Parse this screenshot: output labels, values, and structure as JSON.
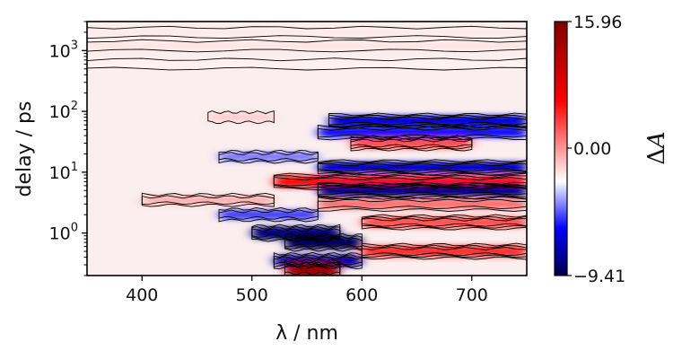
{
  "chart_data": {
    "type": "heatmap",
    "title": "",
    "xlabel": "λ / nm",
    "ylabel": "delay / ps",
    "xlim": [
      350,
      750
    ],
    "ylim": [
      0.2,
      3000
    ],
    "yscale": "log",
    "xticks": [
      400,
      500,
      600,
      700
    ],
    "yticks": [
      1,
      10,
      100,
      1000
    ],
    "ytick_labels": [
      {
        "base": "10",
        "exp": "0"
      },
      {
        "base": "10",
        "exp": "1"
      },
      {
        "base": "10",
        "exp": "2"
      },
      {
        "base": "10",
        "exp": "3"
      }
    ],
    "colormap": "seismic",
    "colors": {
      "negative": "#00004d",
      "mid_neg": "#0000ff",
      "zero": "#ffffff",
      "mid_pos": "#ff0000",
      "positive": "#800000"
    },
    "colorbar": {
      "label_symbol": "Δ",
      "label_var": "A",
      "min": -9.41,
      "max": 15.96,
      "ticks": [
        "15.96",
        "0.00",
        "−9.41"
      ]
    },
    "grid": false,
    "legend": "none",
    "bands": [
      {
        "y": 2000,
        "x": [
          350,
          750
        ],
        "value": 0.6
      },
      {
        "y": 1200,
        "x": [
          350,
          750
        ],
        "value": 0.8
      },
      {
        "y": 600,
        "x": [
          350,
          750
        ],
        "value": 0.4
      },
      {
        "y": 80,
        "x": [
          460,
          520
        ],
        "value": 1.5
      },
      {
        "y": 70,
        "x": [
          570,
          750
        ],
        "value": -5.5
      },
      {
        "y": 45,
        "x": [
          560,
          750
        ],
        "value": -4.5
      },
      {
        "y": 30,
        "x": [
          590,
          700
        ],
        "value": 5.5
      },
      {
        "y": 18,
        "x": [
          470,
          560
        ],
        "value": -2.5
      },
      {
        "y": 12,
        "x": [
          560,
          750
        ],
        "value": -6.0
      },
      {
        "y": 7,
        "x": [
          520,
          750
        ],
        "value": 7.5
      },
      {
        "y": 5,
        "x": [
          560,
          750
        ],
        "value": -7.5
      },
      {
        "y": 3.5,
        "x": [
          400,
          520
        ],
        "value": 2.5
      },
      {
        "y": 3,
        "x": [
          560,
          750
        ],
        "value": 4.5
      },
      {
        "y": 2,
        "x": [
          470,
          560
        ],
        "value": -3.5
      },
      {
        "y": 1.5,
        "x": [
          600,
          750
        ],
        "value": 5.5
      },
      {
        "y": 1.0,
        "x": [
          500,
          580
        ],
        "value": -8.0
      },
      {
        "y": 0.7,
        "x": [
          530,
          600
        ],
        "value": -9.0
      },
      {
        "y": 0.5,
        "x": [
          600,
          750
        ],
        "value": 6.5
      },
      {
        "y": 0.35,
        "x": [
          520,
          600
        ],
        "value": -7.0
      },
      {
        "y": 0.25,
        "x": [
          530,
          580
        ],
        "value": 14.0
      }
    ]
  }
}
